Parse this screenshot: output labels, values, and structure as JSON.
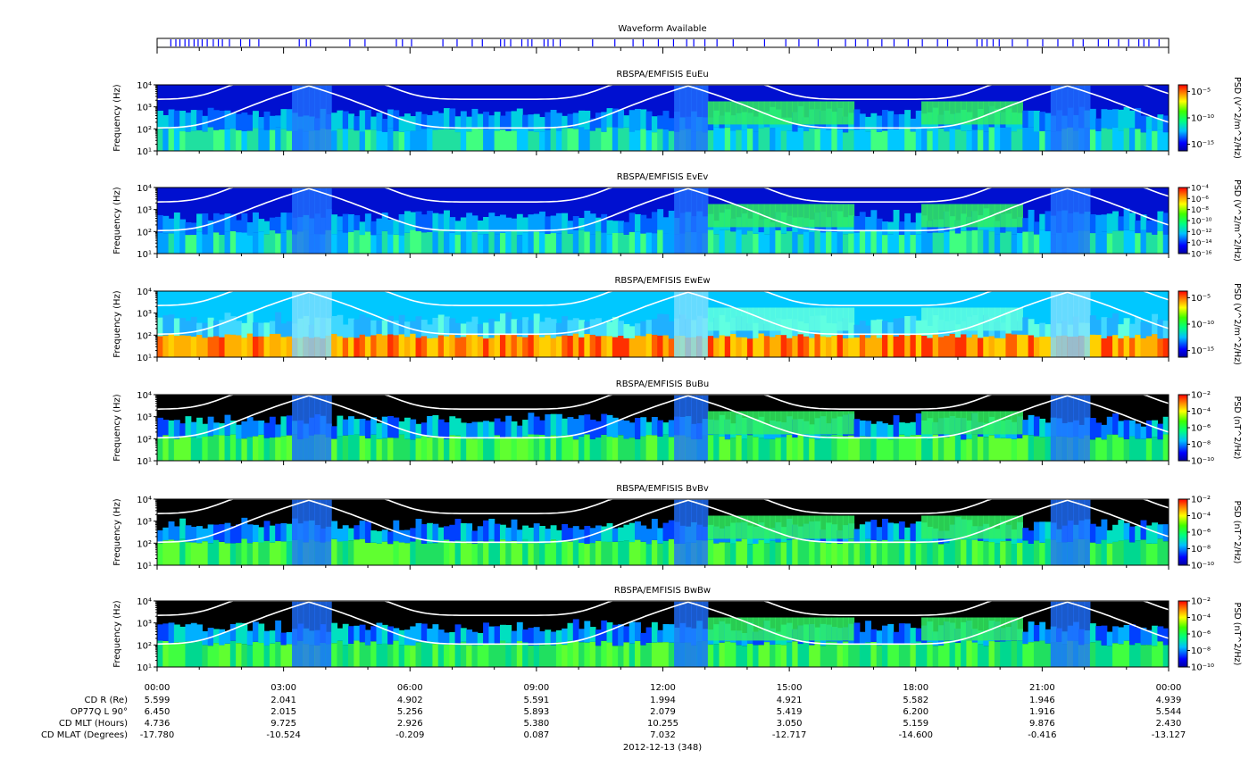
{
  "waveform": {
    "title": "Waveform Available",
    "bar_color": "#0000ff",
    "availability_fractions": [
      0.013,
      0.018,
      0.022,
      0.027,
      0.031,
      0.036,
      0.04,
      0.044,
      0.049,
      0.055,
      0.06,
      0.064,
      0.071,
      0.082,
      0.091,
      0.1,
      0.14,
      0.147,
      0.151,
      0.19,
      0.205,
      0.236,
      0.242,
      0.251,
      0.282,
      0.296,
      0.311,
      0.321,
      0.339,
      0.343,
      0.349,
      0.36,
      0.366,
      0.37,
      0.382,
      0.386,
      0.391,
      0.398,
      0.43,
      0.452,
      0.47,
      0.48,
      0.495,
      0.51,
      0.523,
      0.53,
      0.541,
      0.553,
      0.569,
      0.6,
      0.621,
      0.634,
      0.653,
      0.68,
      0.69,
      0.702,
      0.716,
      0.728,
      0.742,
      0.756,
      0.771,
      0.781,
      0.81,
      0.815,
      0.82,
      0.826,
      0.832,
      0.845,
      0.86,
      0.875,
      0.89,
      0.905,
      0.915,
      0.93,
      0.94,
      0.95,
      0.96,
      0.97,
      0.975,
      0.98,
      0.99
    ]
  },
  "chart_data": [
    {
      "type": "heatmap",
      "title": "RBSPA/EMFISIS  EuEu",
      "ylabel": "Frequency (Hz)",
      "yscale": "log",
      "ylim": [
        10,
        10000
      ],
      "y_ticks": [
        "10¹",
        "10²",
        "10³",
        "10⁴"
      ],
      "colorbar_label": "PSD (V^2/m^2/Hz)",
      "colorbar_ticks": [
        "10⁻¹⁵",
        "10⁻¹⁰",
        "10⁻⁵"
      ],
      "colorbar_range_log10": [
        -16,
        -4
      ]
    },
    {
      "type": "heatmap",
      "title": "RBSPA/EMFISIS  EvEv",
      "ylabel": "Frequency (Hz)",
      "yscale": "log",
      "ylim": [
        10,
        10000
      ],
      "y_ticks": [
        "10¹",
        "10²",
        "10³",
        "10⁴"
      ],
      "colorbar_label": "PSD (V^2/m^2/Hz)",
      "colorbar_ticks": [
        "10⁻¹⁶",
        "10⁻¹⁴",
        "10⁻¹²",
        "10⁻¹⁰",
        "10⁻⁸",
        "10⁻⁶",
        "10⁻⁴"
      ],
      "colorbar_range_log10": [
        -16,
        -4
      ]
    },
    {
      "type": "heatmap",
      "title": "RBSPA/EMFISIS  EwEw",
      "ylabel": "Frequency (Hz)",
      "yscale": "log",
      "ylim": [
        10,
        10000
      ],
      "y_ticks": [
        "10¹",
        "10²",
        "10³",
        "10⁴"
      ],
      "colorbar_label": "PSD (V^2/m^2/Hz)",
      "colorbar_ticks": [
        "10⁻¹⁵",
        "10⁻¹⁰",
        "10⁻⁵"
      ],
      "colorbar_range_log10": [
        -16,
        -4
      ]
    },
    {
      "type": "heatmap",
      "title": "RBSPA/EMFISIS  BuBu",
      "ylabel": "Frequency (Hz)",
      "yscale": "log",
      "ylim": [
        10,
        10000
      ],
      "y_ticks": [
        "10¹",
        "10²",
        "10³",
        "10⁴"
      ],
      "colorbar_label": "PSD (nT^2/Hz)",
      "colorbar_ticks": [
        "10⁻¹⁰",
        "10⁻⁸",
        "10⁻⁶",
        "10⁻⁴",
        "10⁻²"
      ],
      "colorbar_range_log10": [
        -10,
        -2
      ]
    },
    {
      "type": "heatmap",
      "title": "RBSPA/EMFISIS  BvBv",
      "ylabel": "Frequency (Hz)",
      "yscale": "log",
      "ylim": [
        10,
        10000
      ],
      "y_ticks": [
        "10¹",
        "10²",
        "10³",
        "10⁴"
      ],
      "colorbar_label": "PSD (nT^2/Hz)",
      "colorbar_ticks": [
        "10⁻¹⁰",
        "10⁻⁸",
        "10⁻⁶",
        "10⁻⁴",
        "10⁻²"
      ],
      "colorbar_range_log10": [
        -10,
        -2
      ]
    },
    {
      "type": "heatmap",
      "title": "RBSPA/EMFISIS  BwBw",
      "ylabel": "Frequency (Hz)",
      "yscale": "log",
      "ylim": [
        10,
        10000
      ],
      "y_ticks": [
        "10¹",
        "10²",
        "10³",
        "10⁴"
      ],
      "colorbar_label": "PSD (nT^2/Hz)",
      "colorbar_ticks": [
        "10⁻¹⁰",
        "10⁻⁸",
        "10⁻⁶",
        "10⁻⁴",
        "10⁻²"
      ],
      "colorbar_range_log10": [
        -10,
        -2
      ]
    }
  ],
  "x_axis": {
    "tick_labels": [
      "00:00",
      "03:00",
      "06:00",
      "09:00",
      "12:00",
      "15:00",
      "18:00",
      "21:00",
      "00:00"
    ],
    "range_hours": [
      0,
      24
    ],
    "date_label": "2012-12-13 (348)"
  },
  "ephemeris": {
    "labels": [
      "CD R (Re)",
      "OP77Q L 90°",
      "CD MLT (Hours)",
      "CD MLAT (Degrees)"
    ],
    "rows": [
      [
        "5.599",
        "2.041",
        "4.902",
        "5.591",
        "1.994",
        "4.921",
        "5.582",
        "1.946",
        "4.939"
      ],
      [
        "6.450",
        "2.015",
        "5.256",
        "5.893",
        "2.079",
        "5.419",
        "6.200",
        "1.916",
        "5.544"
      ],
      [
        "4.736",
        "9.725",
        "2.926",
        "5.380",
        "10.255",
        "3.050",
        "5.159",
        "9.876",
        "2.430"
      ],
      [
        "-17.780",
        "-10.524",
        "-0.209",
        "0.087",
        "7.032",
        "-12.717",
        "-14.600",
        "-0.416",
        "-13.127"
      ]
    ]
  },
  "colors": {
    "overlay_line": "#ffffff",
    "axis": "#000000",
    "background": "#ffffff"
  }
}
